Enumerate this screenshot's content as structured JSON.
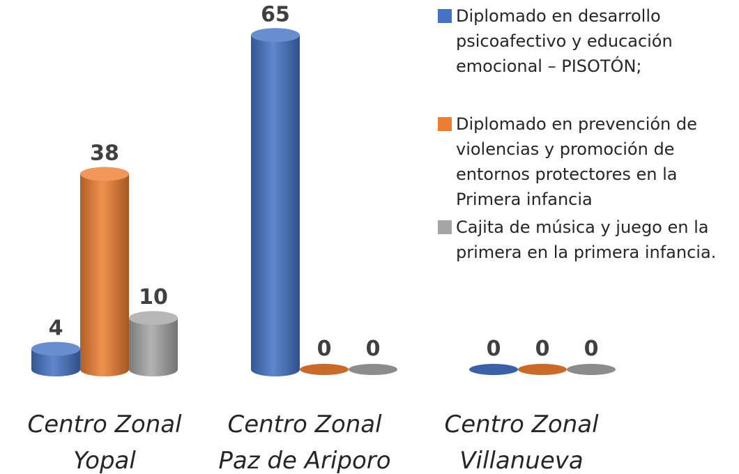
{
  "chart_data": {
    "type": "bar3d",
    "categories": [
      [
        "Centro Zonal",
        "Yopal"
      ],
      [
        "Centro Zonal",
        "Paz de Ariporo"
      ],
      [
        "Centro Zonal",
        "Villanueva"
      ]
    ],
    "series": [
      {
        "name": "Diplomado en desarrollo psicoafectivo y educación emocional – PISOTÓN;",
        "color": "#4472c4",
        "values": [
          4,
          65,
          0
        ]
      },
      {
        "name": "Diplomado en prevención de violencias y promoción de entornos protectores en la Primera infancia",
        "color": "#ed7d31",
        "values": [
          38,
          0,
          0
        ]
      },
      {
        "name": "Cajita de música y juego en la primera en la primera infancia.",
        "color": "#a5a5a5",
        "values": [
          10,
          0,
          0
        ]
      }
    ],
    "legend": "right"
  }
}
